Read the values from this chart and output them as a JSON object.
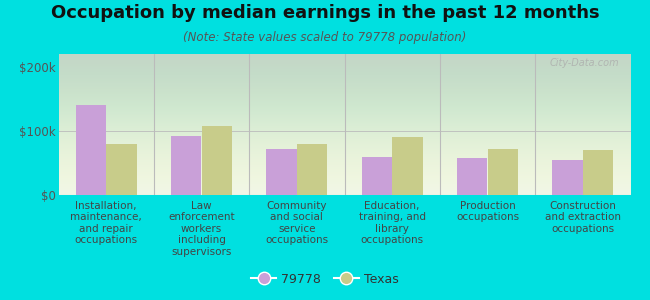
{
  "title": "Occupation by median earnings in the past 12 months",
  "subtitle": "(Note: State values scaled to 79778 population)",
  "categories": [
    "Installation,\nmaintenance,\nand repair\noccupations",
    "Law\nenforcement\nworkers\nincluding\nsupervisors",
    "Community\nand social\nservice\noccupations",
    "Education,\ntraining, and\nlibrary\noccupations",
    "Production\noccupations",
    "Construction\nand extraction\noccupations"
  ],
  "values_79778": [
    140000,
    92000,
    72000,
    60000,
    57000,
    55000
  ],
  "values_texas": [
    80000,
    108000,
    80000,
    90000,
    72000,
    70000
  ],
  "color_79778": "#c9a0d8",
  "color_texas": "#c8cc8a",
  "ylim": [
    0,
    220000
  ],
  "yticks": [
    0,
    100000,
    200000
  ],
  "ytick_labels": [
    "$0",
    "$100k",
    "$200k"
  ],
  "background_color": "#00e0e0",
  "plot_bg_color": "#eef5e8",
  "legend_label_79778": "79778",
  "legend_label_texas": "Texas",
  "bar_width": 0.32,
  "watermark": "City-Data.com",
  "divider_color": "#bbbbbb",
  "title_fontsize": 13,
  "subtitle_fontsize": 8.5,
  "tick_label_fontsize": 7.5,
  "ytick_fontsize": 8.5
}
